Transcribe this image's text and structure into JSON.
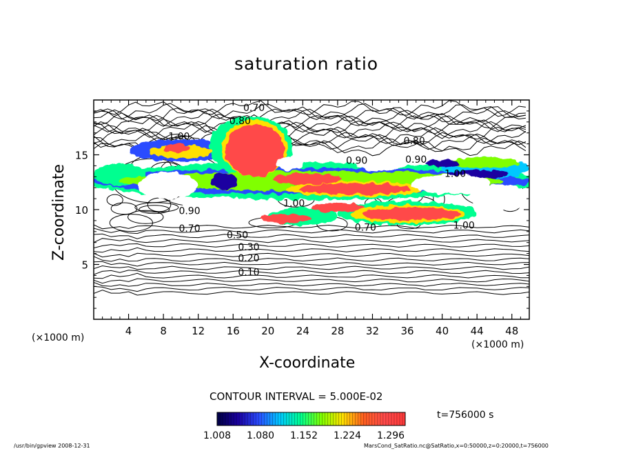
{
  "footer": {
    "left": "/usr/bin/gpview   2008-12-31",
    "right": "MarsCond_SatRatio.nc@SatRatio,x=0:50000,z=0:20000,t=756000"
  },
  "colors": {
    "axis": "#000000",
    "contour_line": "#000000",
    "background": "#ffffff"
  },
  "chart_data": {
    "type": "heatmap",
    "title": "saturation ratio",
    "xlabel": "X-coordinate",
    "ylabel": "Z-coordinate",
    "x_unit_label": "(×1000 m)",
    "y_unit_label": "(×1000 m)",
    "xlim": [
      0,
      50
    ],
    "ylim": [
      0,
      20
    ],
    "x_ticks": [
      4,
      8,
      12,
      16,
      20,
      24,
      28,
      32,
      36,
      40,
      44,
      48
    ],
    "y_ticks": [
      5,
      10,
      15
    ],
    "grid": false,
    "contour_interval_label": "CONTOUR INTERVAL = 5.000E-02",
    "time_label": "t=756000 s",
    "colorbar": {
      "ticks": [
        "1.008",
        "1.080",
        "1.152",
        "1.224",
        "1.296"
      ],
      "min": 1.008,
      "max": 1.32,
      "colors": [
        "#000044",
        "#1a00a0",
        "#2a4cff",
        "#00c8ff",
        "#00ff90",
        "#80ff00",
        "#ffe000",
        "#ff6020",
        "#ff4a4a",
        "#ff3a3a"
      ]
    },
    "contour_labels": [
      {
        "text": "0.70",
        "x": 18.4,
        "z": 19.3
      },
      {
        "text": "0.80",
        "x": 16.8,
        "z": 18.1
      },
      {
        "text": "1.00",
        "x": 9.8,
        "z": 16.7
      },
      {
        "text": "0.80",
        "x": 36.8,
        "z": 16.3
      },
      {
        "text": "0.90",
        "x": 30.2,
        "z": 14.5
      },
      {
        "text": "0.90",
        "x": 37.0,
        "z": 14.6
      },
      {
        "text": "1.00",
        "x": 41.5,
        "z": 13.3
      },
      {
        "text": "1.00",
        "x": 23.0,
        "z": 10.6
      },
      {
        "text": "0.90",
        "x": 11.0,
        "z": 9.9
      },
      {
        "text": "0.70",
        "x": 11.0,
        "z": 8.3
      },
      {
        "text": "0.70",
        "x": 31.2,
        "z": 8.4
      },
      {
        "text": "1.00",
        "x": 42.5,
        "z": 8.6
      },
      {
        "text": "0.50",
        "x": 16.5,
        "z": 7.7
      },
      {
        "text": "0.30",
        "x": 17.8,
        "z": 6.6
      },
      {
        "text": "0.20",
        "x": 17.8,
        "z": 5.6
      },
      {
        "text": "0.10",
        "x": 17.8,
        "z": 4.3
      }
    ]
  }
}
